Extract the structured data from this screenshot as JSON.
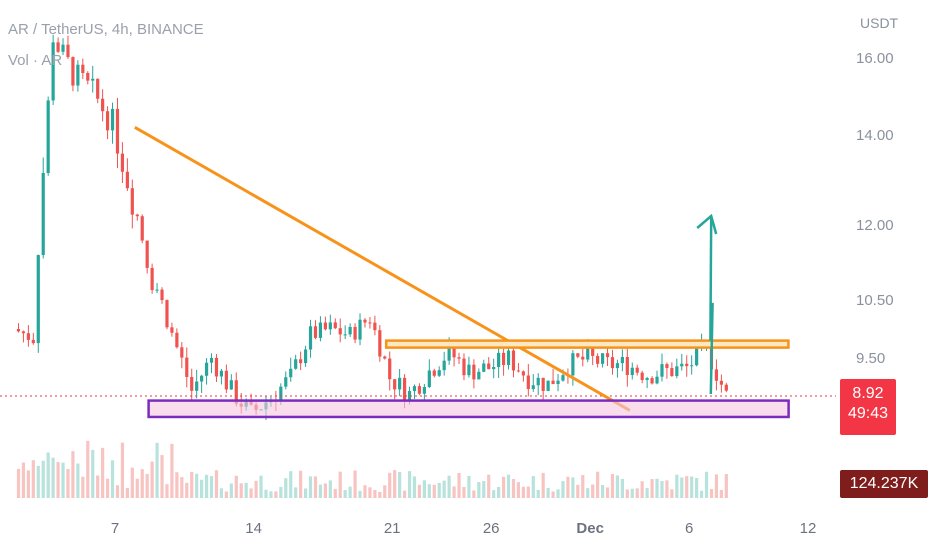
{
  "header": {
    "symbol_line": "AR / TetherUS, 4h, BINANCE",
    "volume_label": "Vol · AR"
  },
  "axis": {
    "unit": "USDT",
    "price_ticks": [
      "16.00",
      "14.00",
      "12.00",
      "10.50",
      "9.50"
    ],
    "time_ticks": [
      "7",
      "14",
      "21",
      "26",
      "Dec",
      "6",
      "12"
    ]
  },
  "current_price": {
    "value": "8.92",
    "countdown": "49:43"
  },
  "volume_value": "124.237K",
  "colors": {
    "up": "#26a69a",
    "down": "#ef5350",
    "trendline": "#f7931a",
    "support_border": "#7b2cbf",
    "support_fill": "#f5c6e0",
    "projection": "#26a69a",
    "price_line": "#f23645"
  },
  "chart_data": {
    "type": "candlestick",
    "title": "AR / TetherUS, 4h, BINANCE",
    "xlabel": "",
    "ylabel": "USDT",
    "yticks": [
      16.0,
      14.0,
      12.0,
      10.5,
      9.5
    ],
    "xticks": [
      "7",
      "14",
      "21",
      "26",
      "Dec",
      "6",
      "12"
    ],
    "grid": false,
    "close_path": [
      {
        "x": "Nov 2",
        "close": 10.0
      },
      {
        "x": "Nov 3",
        "close": 9.85
      },
      {
        "x": "Nov 4",
        "close": 16.5
      },
      {
        "x": "Nov 5",
        "close": 15.6
      },
      {
        "x": "Nov 6",
        "close": 15.1
      },
      {
        "x": "Nov 7",
        "close": 14.3
      },
      {
        "x": "Nov 8",
        "close": 12.6
      },
      {
        "x": "Nov 9",
        "close": 11.0
      },
      {
        "x": "Nov 10",
        "close": 9.9
      },
      {
        "x": "Nov 11",
        "close": 9.0
      },
      {
        "x": "Nov 12",
        "close": 9.5
      },
      {
        "x": "Nov 13",
        "close": 9.0
      },
      {
        "x": "Nov 14",
        "close": 8.65
      },
      {
        "x": "Nov 15",
        "close": 8.9
      },
      {
        "x": "Nov 16",
        "close": 9.2
      },
      {
        "x": "Nov 17",
        "close": 9.9
      },
      {
        "x": "Nov 18",
        "close": 10.0
      },
      {
        "x": "Nov 19",
        "close": 9.9
      },
      {
        "x": "Nov 20",
        "close": 10.2
      },
      {
        "x": "Nov 21",
        "close": 9.2
      },
      {
        "x": "Nov 22",
        "close": 8.95
      },
      {
        "x": "Nov 23",
        "close": 9.3
      },
      {
        "x": "Nov 24",
        "close": 9.6
      },
      {
        "x": "Nov 25",
        "close": 9.3
      },
      {
        "x": "Nov 26",
        "close": 9.35
      },
      {
        "x": "Nov 27",
        "close": 9.5
      },
      {
        "x": "Nov 28",
        "close": 9.2
      },
      {
        "x": "Nov 29",
        "close": 9.1
      },
      {
        "x": "Nov 30",
        "close": 9.4
      },
      {
        "x": "Dec 1",
        "close": 9.5
      },
      {
        "x": "Dec 2",
        "close": 9.4
      },
      {
        "x": "Dec 3",
        "close": 9.4
      },
      {
        "x": "Dec 4",
        "close": 9.25
      },
      {
        "x": "Dec 5",
        "close": 9.3
      },
      {
        "x": "Dec 6",
        "close": 9.35
      },
      {
        "x": "Dec 7",
        "close": 9.65
      },
      {
        "x": "Dec 8",
        "close": 8.92
      }
    ],
    "annotations": [
      {
        "type": "trendline",
        "from": {
          "x": "Nov 8",
          "y": 14.2
        },
        "to": {
          "x": "Dec 3",
          "y": 8.7
        }
      },
      {
        "type": "resistance_box",
        "from": {
          "x": "Nov 21",
          "y": 9.7
        },
        "to": {
          "x": "Dec 10",
          "y": 9.8
        }
      },
      {
        "type": "support_box",
        "from": {
          "x": "Nov 9",
          "y": 8.85
        },
        "to": {
          "x": "Dec 9",
          "y": 8.6
        }
      },
      {
        "type": "projection_path",
        "points": [
          {
            "x": "Dec 8",
            "y": 8.95
          },
          {
            "x": "Dec 9",
            "y": 10.45
          },
          {
            "x": "Dec 10",
            "y": 9.8
          },
          {
            "x": "Dec 11",
            "y": 12.2
          }
        ]
      }
    ],
    "last_price": 8.92
  }
}
